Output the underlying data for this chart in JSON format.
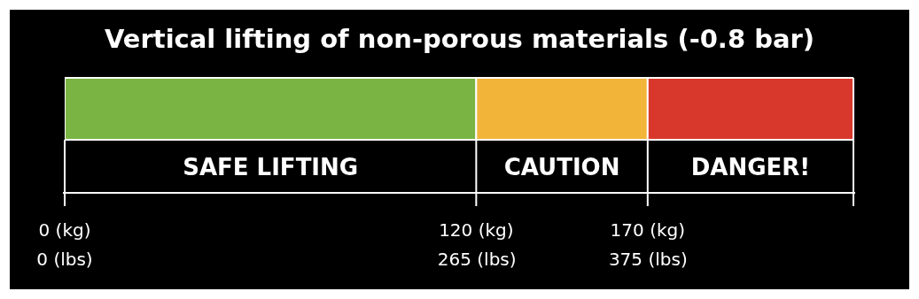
{
  "chart_data": {
    "type": "bar",
    "orientation": "horizontal",
    "stacked": true,
    "title": "Vertical lifting of non-porous materials (-0.8 bar)",
    "categories": [
      null
    ],
    "series": [
      {
        "name": "SAFE LIFTING",
        "color": "#7ab443",
        "values": [
          120
        ]
      },
      {
        "name": "CAUTION",
        "color": "#f2b53a",
        "values": [
          50
        ]
      },
      {
        "name": "DANGER!",
        "color": "#d8382c",
        "values": [
          60
        ]
      }
    ],
    "xlim": [
      0,
      230
    ],
    "xticks": [
      {
        "value": 0,
        "label": "0 (kg)"
      },
      {
        "value": 120,
        "label": "120 (kg)"
      },
      {
        "value": 170,
        "label": "170 (kg)"
      }
    ],
    "x2lim": [
      0,
      507
    ],
    "x2ticks": [
      {
        "value": 0,
        "label": "0 (lbs)"
      },
      {
        "value": 265,
        "label": "265 (lbs)"
      },
      {
        "value": 375,
        "label": "375 (lbs)"
      }
    ]
  }
}
